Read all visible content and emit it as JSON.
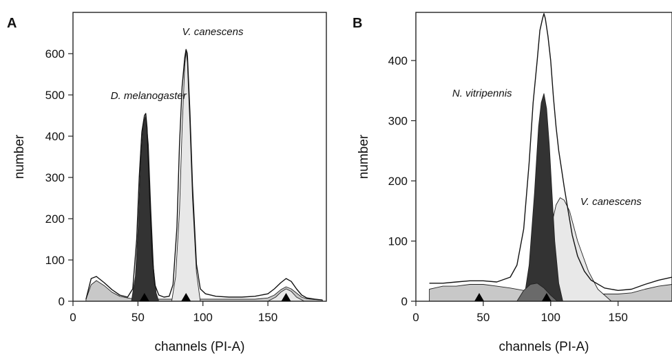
{
  "chart_data": [
    {
      "type": "area",
      "panel_label": "A",
      "xlabel": "channels (PI-A)",
      "ylabel": "number",
      "xlim": [
        0,
        195
      ],
      "ylim": [
        0,
        700
      ],
      "xticks": [
        0,
        50,
        100,
        150
      ],
      "yticks": [
        0,
        100,
        200,
        300,
        400,
        500,
        600
      ],
      "grid": false,
      "colors": {
        "dark": "#333333",
        "light": "#e8e8e8",
        "background": "#c8c8c8",
        "line": "#111111"
      },
      "markers_x": [
        55,
        87,
        164
      ],
      "annotations": [
        {
          "text": "D. melanogaster",
          "x": 29,
          "y": 490
        },
        {
          "text": "V. canescens",
          "x": 84,
          "y": 645
        }
      ],
      "series": [
        {
          "role": "background",
          "fill": "background",
          "x": [
            10,
            14,
            18,
            24,
            30,
            36,
            42,
            46,
            50,
            54,
            58,
            64,
            70,
            80,
            90,
            100,
            110,
            120,
            130,
            140,
            150,
            155,
            160,
            164,
            168,
            172,
            176,
            180,
            186,
            192
          ],
          "y": [
            5,
            40,
            50,
            38,
            22,
            12,
            8,
            6,
            5,
            5,
            5,
            5,
            5,
            5,
            5,
            5,
            5,
            5,
            5,
            5,
            8,
            15,
            28,
            35,
            30,
            20,
            10,
            6,
            4,
            3
          ]
        },
        {
          "role": "peak",
          "fill": "dark",
          "name": "D. melanogaster",
          "x": [
            45,
            48,
            50,
            52,
            54,
            56,
            58,
            60,
            62,
            64,
            66
          ],
          "y": [
            0,
            60,
            170,
            330,
            430,
            450,
            380,
            220,
            80,
            20,
            0
          ]
        },
        {
          "role": "peak",
          "fill": "light",
          "name": "V. canescens",
          "x": [
            76,
            79,
            82,
            84,
            86,
            87,
            88,
            90,
            92,
            95,
            98
          ],
          "y": [
            0,
            60,
            220,
            420,
            570,
            605,
            580,
            430,
            250,
            70,
            0
          ]
        },
        {
          "role": "peak",
          "fill": "light",
          "x": [
            150,
            156,
            160,
            164,
            168,
            172,
            178
          ],
          "y": [
            0,
            10,
            22,
            30,
            24,
            10,
            0
          ]
        },
        {
          "role": "outline",
          "fill": "none",
          "x": [
            10,
            14,
            18,
            24,
            30,
            36,
            42,
            46,
            49,
            51,
            53,
            55,
            56,
            57,
            59,
            61,
            63,
            66,
            70,
            74,
            77,
            80,
            82,
            84,
            86,
            87,
            88,
            90,
            92,
            95,
            98,
            102,
            110,
            120,
            130,
            140,
            150,
            155,
            160,
            164,
            168,
            172,
            176,
            180,
            186,
            192
          ],
          "y": [
            5,
            55,
            60,
            45,
            28,
            15,
            10,
            30,
            150,
            300,
            410,
            450,
            455,
            420,
            260,
            110,
            40,
            15,
            10,
            12,
            40,
            180,
            380,
            520,
            590,
            610,
            600,
            460,
            280,
            90,
            30,
            18,
            12,
            10,
            10,
            12,
            18,
            30,
            45,
            55,
            48,
            30,
            15,
            8,
            5,
            3
          ]
        }
      ]
    },
    {
      "type": "area",
      "panel_label": "B",
      "xlabel": "channels (PI-A)",
      "ylabel": "number",
      "xlim": [
        0,
        190
      ],
      "ylim": [
        0,
        480
      ],
      "xticks": [
        0,
        50,
        100,
        150
      ],
      "yticks": [
        0,
        100,
        200,
        300,
        400
      ],
      "grid": false,
      "colors": {
        "dark": "#333333",
        "mid": "#6a6a6a",
        "light": "#e8e8e8",
        "background": "#c8c8c8",
        "line": "#111111"
      },
      "markers_x": [
        47,
        97
      ],
      "annotations": [
        {
          "text": "N. vitripennis",
          "x": 27,
          "y": 340
        },
        {
          "text": "V. canescens",
          "x": 122,
          "y": 160
        }
      ],
      "series": [
        {
          "role": "background",
          "fill": "background",
          "x": [
            10,
            20,
            30,
            40,
            50,
            60,
            70,
            80,
            90,
            100,
            110,
            120,
            130,
            140,
            150,
            160,
            170,
            180,
            190
          ],
          "y": [
            20,
            25,
            25,
            28,
            28,
            25,
            22,
            18,
            15,
            12,
            12,
            12,
            12,
            12,
            12,
            14,
            20,
            25,
            28
          ]
        },
        {
          "role": "peak",
          "fill": "light",
          "name": "V. canescens",
          "x": [
            80,
            90,
            95,
            100,
            104,
            107,
            110,
            114,
            120,
            128,
            135,
            145
          ],
          "y": [
            0,
            20,
            60,
            120,
            160,
            172,
            168,
            150,
            100,
            50,
            20,
            0
          ]
        },
        {
          "role": "peak",
          "fill": "dark",
          "name": "N. vitripennis",
          "x": [
            80,
            84,
            88,
            91,
            93,
            95,
            97,
            99,
            101,
            103,
            106,
            109
          ],
          "y": [
            0,
            60,
            180,
            290,
            330,
            345,
            320,
            260,
            180,
            100,
            30,
            0
          ]
        },
        {
          "role": "peak",
          "fill": "mid",
          "x": [
            75,
            80,
            85,
            90,
            95,
            100,
            105
          ],
          "y": [
            0,
            18,
            28,
            30,
            22,
            10,
            0
          ]
        },
        {
          "role": "outline",
          "fill": "none",
          "x": [
            10,
            20,
            30,
            40,
            50,
            60,
            70,
            75,
            80,
            84,
            87,
            90,
            92,
            94,
            95,
            96,
            98,
            100,
            102,
            104,
            106,
            108,
            110,
            113,
            116,
            120,
            125,
            130,
            140,
            150,
            160,
            170,
            180,
            190
          ],
          "y": [
            30,
            30,
            32,
            34,
            34,
            32,
            40,
            60,
            120,
            230,
            330,
            400,
            450,
            470,
            478,
            470,
            440,
            400,
            340,
            290,
            250,
            220,
            190,
            150,
            110,
            75,
            50,
            35,
            22,
            18,
            20,
            28,
            35,
            40
          ]
        }
      ]
    }
  ]
}
